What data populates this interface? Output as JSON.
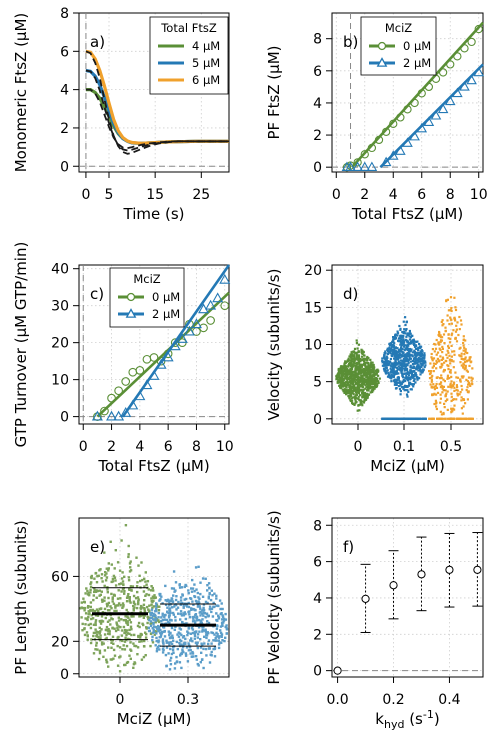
{
  "chart_data": [
    {
      "id": "a",
      "type": "line",
      "panel_label": "a)",
      "xlabel": "Time (s)",
      "ylabel": "Monomeric FtsZ (μM)",
      "xlim": [
        -1.5,
        31
      ],
      "ylim": [
        -0.3,
        8
      ],
      "xticks": [
        0,
        5,
        15,
        25
      ],
      "xtick_labels": [
        "0",
        "5",
        "15",
        "25"
      ],
      "yticks": [
        0,
        2,
        4,
        6,
        8
      ],
      "ytick_labels": [
        "0",
        "2",
        "4",
        "6",
        "8"
      ],
      "grid": true,
      "legend": {
        "title": "Total FtsZ",
        "position": "top-right"
      },
      "series": [
        {
          "name": "4 μM",
          "color": "#5a8f36",
          "x": [
            0,
            1,
            2,
            3,
            4,
            5,
            6,
            7,
            8,
            9,
            10,
            12,
            14,
            16,
            18,
            20,
            24,
            28,
            31
          ],
          "values": [
            4.0,
            4.0,
            3.85,
            3.55,
            3.1,
            2.6,
            2.1,
            1.7,
            1.45,
            1.3,
            1.22,
            1.2,
            1.22,
            1.25,
            1.27,
            1.28,
            1.3,
            1.3,
            1.3
          ]
        },
        {
          "name": "5 μM",
          "color": "#2479b5",
          "x": [
            0,
            1,
            2,
            3,
            4,
            5,
            6,
            7,
            8,
            9,
            10,
            12,
            14,
            16,
            18,
            20,
            24,
            28,
            31
          ],
          "values": [
            5.0,
            4.95,
            4.7,
            4.25,
            3.6,
            2.9,
            2.25,
            1.75,
            1.45,
            1.3,
            1.22,
            1.2,
            1.22,
            1.25,
            1.27,
            1.28,
            1.3,
            1.3,
            1.3
          ]
        },
        {
          "name": "6 μM",
          "color": "#f0a12c",
          "x": [
            0,
            1,
            2,
            3,
            4,
            5,
            6,
            7,
            8,
            9,
            10,
            12,
            14,
            16,
            18,
            20,
            24,
            28,
            31
          ],
          "values": [
            6.0,
            5.95,
            5.6,
            5.0,
            4.2,
            3.3,
            2.45,
            1.85,
            1.5,
            1.32,
            1.24,
            1.2,
            1.22,
            1.25,
            1.27,
            1.28,
            1.3,
            1.3,
            1.3
          ]
        }
      ],
      "dashed_series": [
        {
          "x": [
            0,
            1,
            2,
            3,
            4,
            5,
            6,
            7,
            8,
            9,
            10,
            12,
            14,
            16,
            18,
            20,
            24,
            28,
            31
          ],
          "values": [
            4.0,
            4.0,
            3.8,
            3.35,
            2.7,
            2.05,
            1.5,
            1.15,
            0.98,
            0.95,
            1.0,
            1.12,
            1.2,
            1.25,
            1.28,
            1.3,
            1.3,
            1.3,
            1.3
          ]
        },
        {
          "x": [
            0,
            1,
            2,
            3,
            4,
            5,
            6,
            7,
            8,
            9,
            10,
            12,
            14,
            16,
            18,
            20,
            24,
            28,
            31
          ],
          "values": [
            5.0,
            4.95,
            4.6,
            3.95,
            3.1,
            2.25,
            1.55,
            1.1,
            0.88,
            0.82,
            0.87,
            1.02,
            1.15,
            1.22,
            1.27,
            1.3,
            1.3,
            1.3,
            1.3
          ]
        },
        {
          "x": [
            0,
            1,
            2,
            3,
            4,
            5,
            6,
            7,
            8,
            9,
            10,
            12,
            14,
            16,
            18,
            20,
            24,
            28,
            31
          ],
          "values": [
            6.0,
            5.9,
            5.4,
            4.6,
            3.5,
            2.45,
            1.6,
            1.05,
            0.75,
            0.65,
            0.7,
            0.9,
            1.08,
            1.2,
            1.26,
            1.3,
            1.3,
            1.3,
            1.3
          ]
        }
      ]
    },
    {
      "id": "b",
      "type": "scatter",
      "panel_label": "b)",
      "xlabel": "Total FtsZ (μM)",
      "ylabel": "PF FtsZ (μM)",
      "xlim": [
        -0.3,
        10.3
      ],
      "ylim": [
        -0.3,
        9.6
      ],
      "xticks": [
        0,
        2,
        4,
        6,
        8,
        10
      ],
      "xtick_labels": [
        "0",
        "2",
        "4",
        "6",
        "8",
        "10"
      ],
      "yticks": [
        0,
        2,
        4,
        6,
        8
      ],
      "ytick_labels": [
        "0",
        "2",
        "4",
        "6",
        "8"
      ],
      "grid": true,
      "legend": {
        "title": "MciZ",
        "position": "top-left"
      },
      "series": [
        {
          "name": "0  μM",
          "color": "#5a8f36",
          "marker": "circle",
          "x": [
            0.75,
            1,
            1.5,
            2,
            2.5,
            3,
            3.5,
            4,
            4.5,
            5,
            5.5,
            6,
            6.5,
            7,
            7.5,
            8,
            8.5,
            9,
            9.5,
            10
          ],
          "values": [
            0,
            0.1,
            0.3,
            0.8,
            1.2,
            1.7,
            2.2,
            2.7,
            3.1,
            3.6,
            4.0,
            4.6,
            5.0,
            5.5,
            5.9,
            6.4,
            6.9,
            7.4,
            7.8,
            8.6
          ],
          "fit": {
            "x": [
              1.1,
              10.3
            ],
            "y": [
              0,
              9.0
            ]
          }
        },
        {
          "name": "2  μM",
          "color": "#2479b5",
          "marker": "triangle",
          "x": [
            0.75,
            1,
            1.5,
            2,
            2.5,
            3.5,
            4,
            4.5,
            5,
            5.5,
            6,
            6.5,
            7,
            7.5,
            8,
            8.5,
            9,
            9.5,
            10
          ],
          "values": [
            0,
            0,
            0,
            0,
            0,
            0.3,
            0.7,
            1.0,
            1.5,
            1.9,
            2.4,
            2.8,
            3.2,
            3.6,
            4.1,
            4.6,
            5.0,
            5.4,
            5.9
          ],
          "fit": {
            "x": [
              3.1,
              10.3
            ],
            "y": [
              0,
              6.4
            ]
          }
        }
      ]
    },
    {
      "id": "c",
      "type": "scatter",
      "panel_label": "c)",
      "xlabel": "Total FtsZ (μM)",
      "ylabel": "GTP Turnover (μM GTP/min)",
      "xlim": [
        -0.3,
        10.3
      ],
      "ylim": [
        -2,
        41
      ],
      "xticks": [
        0,
        2,
        4,
        6,
        8,
        10
      ],
      "xtick_labels": [
        "0",
        "2",
        "4",
        "6",
        "8",
        "10"
      ],
      "yticks": [
        0,
        10,
        20,
        30,
        40
      ],
      "ytick_labels": [
        "0",
        "10",
        "20",
        "30",
        "40"
      ],
      "grid": true,
      "legend": {
        "title": "MciZ",
        "position": "top-left"
      },
      "series": [
        {
          "name": "0  μM",
          "color": "#5a8f36",
          "marker": "circle",
          "x": [
            1,
            1.5,
            2,
            2.5,
            3,
            3.5,
            4,
            4.5,
            5,
            5.5,
            6,
            6.5,
            7,
            7.5,
            8,
            8.5,
            9,
            10
          ],
          "values": [
            0,
            1.5,
            5,
            7,
            9.5,
            12,
            12.5,
            15.5,
            16,
            15,
            17,
            20,
            20,
            25,
            23,
            24,
            26,
            30
          ],
          "fit": {
            "x": [
              1.0,
              10.3
            ],
            "y": [
              0,
              33.5
            ]
          }
        },
        {
          "name": "2  μM",
          "color": "#2479b5",
          "marker": "triangle",
          "x": [
            1,
            2,
            2.5,
            3,
            3.5,
            4,
            4.5,
            5,
            5.5,
            6,
            6.5,
            7,
            7.5,
            8,
            8.5,
            9,
            9.5,
            10
          ],
          "values": [
            0,
            0,
            0,
            1,
            3,
            5.5,
            8.5,
            11,
            14,
            16,
            19,
            21,
            23,
            25,
            29,
            30,
            32,
            37
          ],
          "fit": {
            "x": [
              2.8,
              10.3
            ],
            "y": [
              0,
              41
            ]
          }
        }
      ]
    },
    {
      "id": "d",
      "type": "scatter",
      "subtype": "beeswarm",
      "panel_label": "d)",
      "xlabel": "MciZ (μM)",
      "ylabel": "Velocity (subunits/s)",
      "ylim": [
        -0.7,
        20.7
      ],
      "categories": [
        "0",
        "0.1",
        "0.5"
      ],
      "yticks": [
        0,
        5,
        10,
        15,
        20
      ],
      "ytick_labels": [
        "0",
        "5",
        "10",
        "15",
        "20"
      ],
      "grid": true,
      "groups": [
        {
          "name": "0",
          "color": "#5a8f36",
          "n": 900,
          "mean": 5.6,
          "sd": 1.6,
          "range": [
            0.5,
            11
          ],
          "zeros": 0
        },
        {
          "name": "0.1",
          "color": "#2479b5",
          "n": 700,
          "mean": 7.8,
          "sd": 2.0,
          "range": [
            1,
            14
          ],
          "zeros": 160
        },
        {
          "name": "0.5",
          "color": "#f0a12c",
          "n": 330,
          "mean": 6.2,
          "sd": 4.2,
          "range": [
            0.5,
            18
          ],
          "zeros": 70
        }
      ]
    },
    {
      "id": "e",
      "type": "scatter",
      "subtype": "beeswarm",
      "panel_label": "e)",
      "xlabel": "MciZ (μM)",
      "ylabel": "PF Length (subunits)",
      "ylim": [
        -2,
        96
      ],
      "categories": [
        "0",
        "0.3"
      ],
      "yticks": [
        0,
        20,
        60
      ],
      "ytick_labels": [
        "0",
        "20",
        "60"
      ],
      "grid": true,
      "groups": [
        {
          "name": "0",
          "color": "#7da35a",
          "n": 500,
          "mean": 37,
          "sd_line": 16,
          "range": [
            1,
            96
          ]
        },
        {
          "name": "0.3",
          "color": "#5b9dc9",
          "n": 550,
          "mean": 30,
          "sd_line": 13,
          "range": [
            1,
            68
          ]
        }
      ]
    },
    {
      "id": "f",
      "type": "scatter",
      "subtype": "errorbar",
      "panel_label": "f)",
      "xlabel": "k_hyd (s^-1)",
      "ylabel": "PF Velocity (subunits/s)",
      "xlim": [
        -0.02,
        0.52
      ],
      "ylim": [
        -0.35,
        8.4
      ],
      "xticks": [
        0,
        0.2,
        0.4
      ],
      "xtick_labels": [
        "0.0",
        "0.2",
        "0.4"
      ],
      "yticks": [
        0,
        2,
        4,
        6,
        8
      ],
      "ytick_labels": [
        "0",
        "2",
        "4",
        "6",
        "8"
      ],
      "grid": true,
      "points": [
        {
          "x": 0.0,
          "y": 0.0,
          "lo": 0.0,
          "hi": 0.0
        },
        {
          "x": 0.1,
          "y": 3.95,
          "lo": 2.1,
          "hi": 5.85
        },
        {
          "x": 0.2,
          "y": 4.7,
          "lo": 2.85,
          "hi": 6.6
        },
        {
          "x": 0.3,
          "y": 5.3,
          "lo": 3.3,
          "hi": 7.35
        },
        {
          "x": 0.4,
          "y": 5.55,
          "lo": 3.5,
          "hi": 7.55
        },
        {
          "x": 0.5,
          "y": 5.55,
          "lo": 3.55,
          "hi": 7.6
        }
      ]
    }
  ]
}
